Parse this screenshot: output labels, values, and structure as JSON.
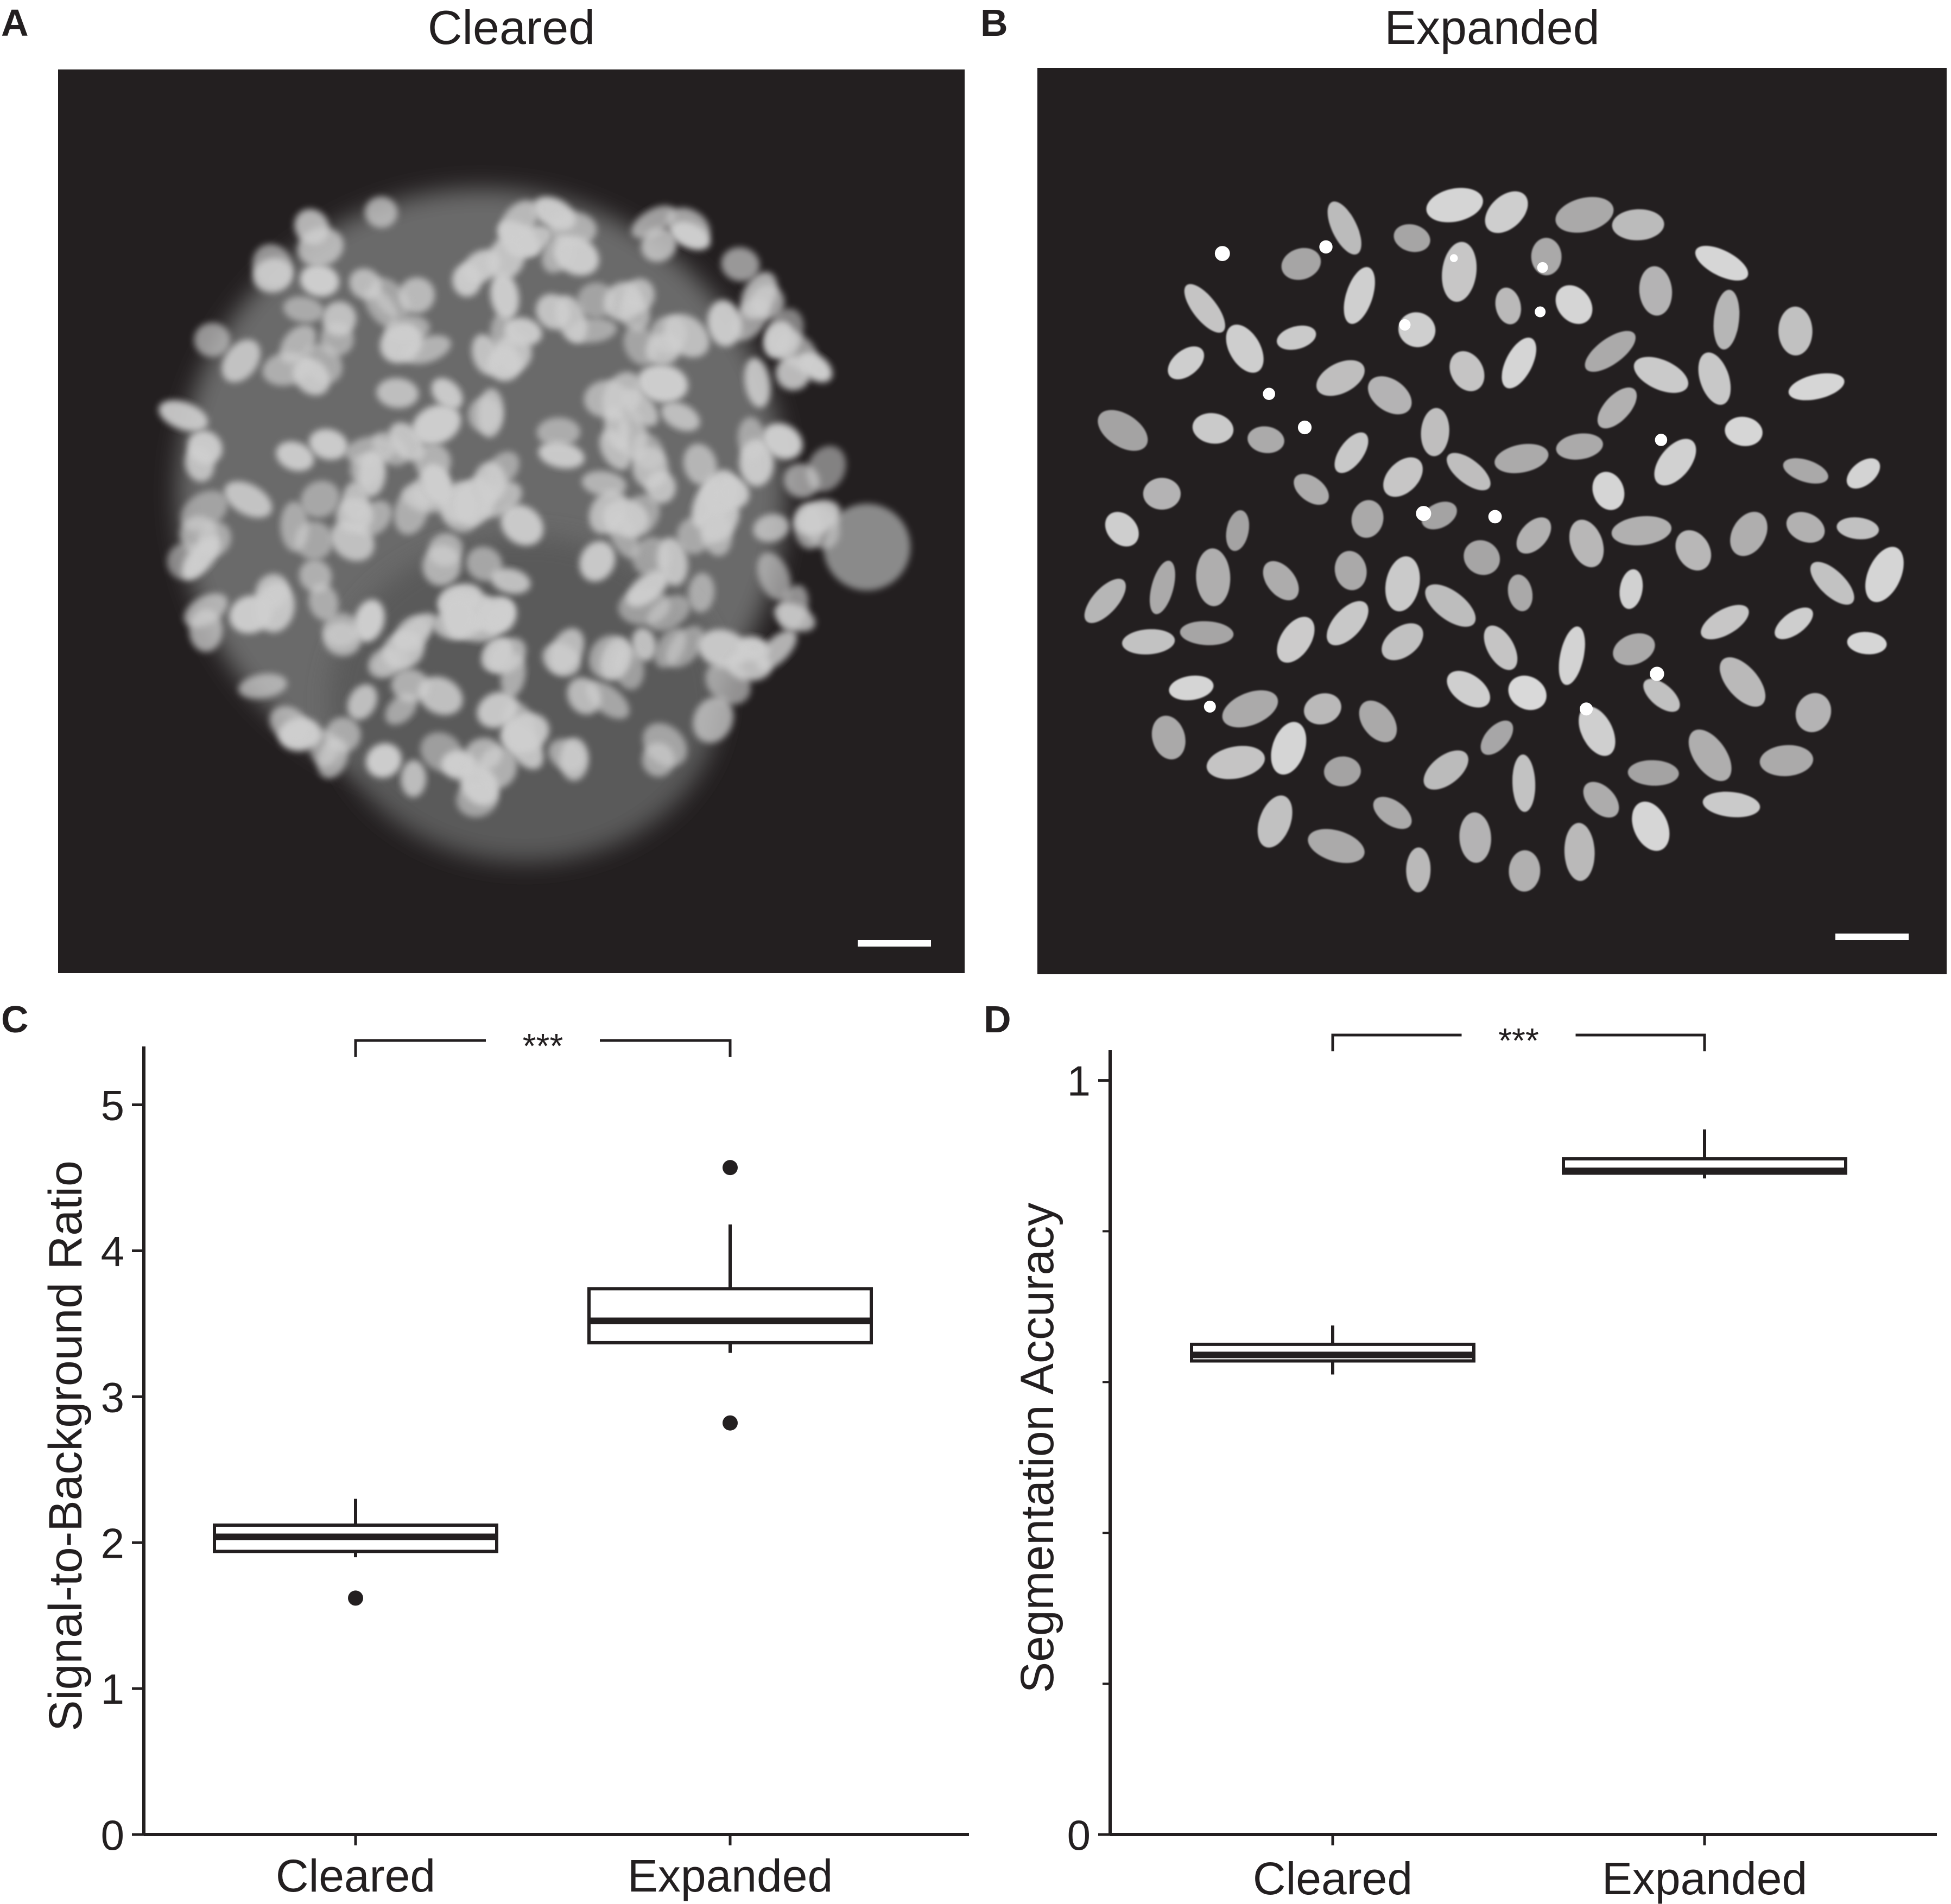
{
  "panels": {
    "A": {
      "letter": "A",
      "title": "Cleared"
    },
    "B": {
      "letter": "B",
      "title": "Expanded"
    },
    "C": {
      "letter": "C"
    },
    "D": {
      "letter": "D"
    }
  },
  "colors": {
    "ink": "#231f20",
    "micrograph_background": "#231f20",
    "nucleus_cleared": "#cfcfcf",
    "nucleus_expanded": "#d9d9d9"
  },
  "chart_data": [
    {
      "type": "box",
      "panel": "C",
      "ylabel": "Signal-to-Background Ratio",
      "xlabel": "",
      "ylim": [
        0,
        5.4
      ],
      "yticks": [
        0,
        1,
        2,
        3,
        4,
        5
      ],
      "categories": [
        "Cleared",
        "Expanded"
      ],
      "boxes": [
        {
          "category": "Cleared",
          "whisker_low": 1.9,
          "q1": 1.94,
          "median": 2.04,
          "q3": 2.12,
          "whisker_high": 2.3,
          "outliers": [
            1.62
          ]
        },
        {
          "category": "Expanded",
          "whisker_low": 3.3,
          "q1": 3.37,
          "median": 3.52,
          "q3": 3.74,
          "whisker_high": 4.18,
          "outliers": [
            4.57,
            2.82
          ]
        }
      ],
      "significance": {
        "label": "***",
        "between": [
          "Cleared",
          "Expanded"
        ]
      }
    },
    {
      "type": "box",
      "panel": "D",
      "ylabel": "Segmentation Accuracy",
      "xlabel": "",
      "ylim": [
        0,
        1.04
      ],
      "yticks": [
        0,
        1
      ],
      "ytick_labels": [
        "0",
        "1"
      ],
      "minor_ticks": [
        0.2,
        0.4,
        0.6,
        0.8
      ],
      "categories": [
        "Cleared",
        "Expanded"
      ],
      "boxes": [
        {
          "category": "Cleared",
          "whisker_low": 0.61,
          "q1": 0.628,
          "median": 0.636,
          "q3": 0.65,
          "whisker_high": 0.675,
          "outliers": []
        },
        {
          "category": "Expanded",
          "whisker_low": 0.87,
          "q1": 0.877,
          "median": 0.88,
          "q3": 0.896,
          "whisker_high": 0.935,
          "outliers": []
        }
      ],
      "significance": {
        "label": "***",
        "between": [
          "Cleared",
          "Expanded"
        ]
      }
    }
  ]
}
